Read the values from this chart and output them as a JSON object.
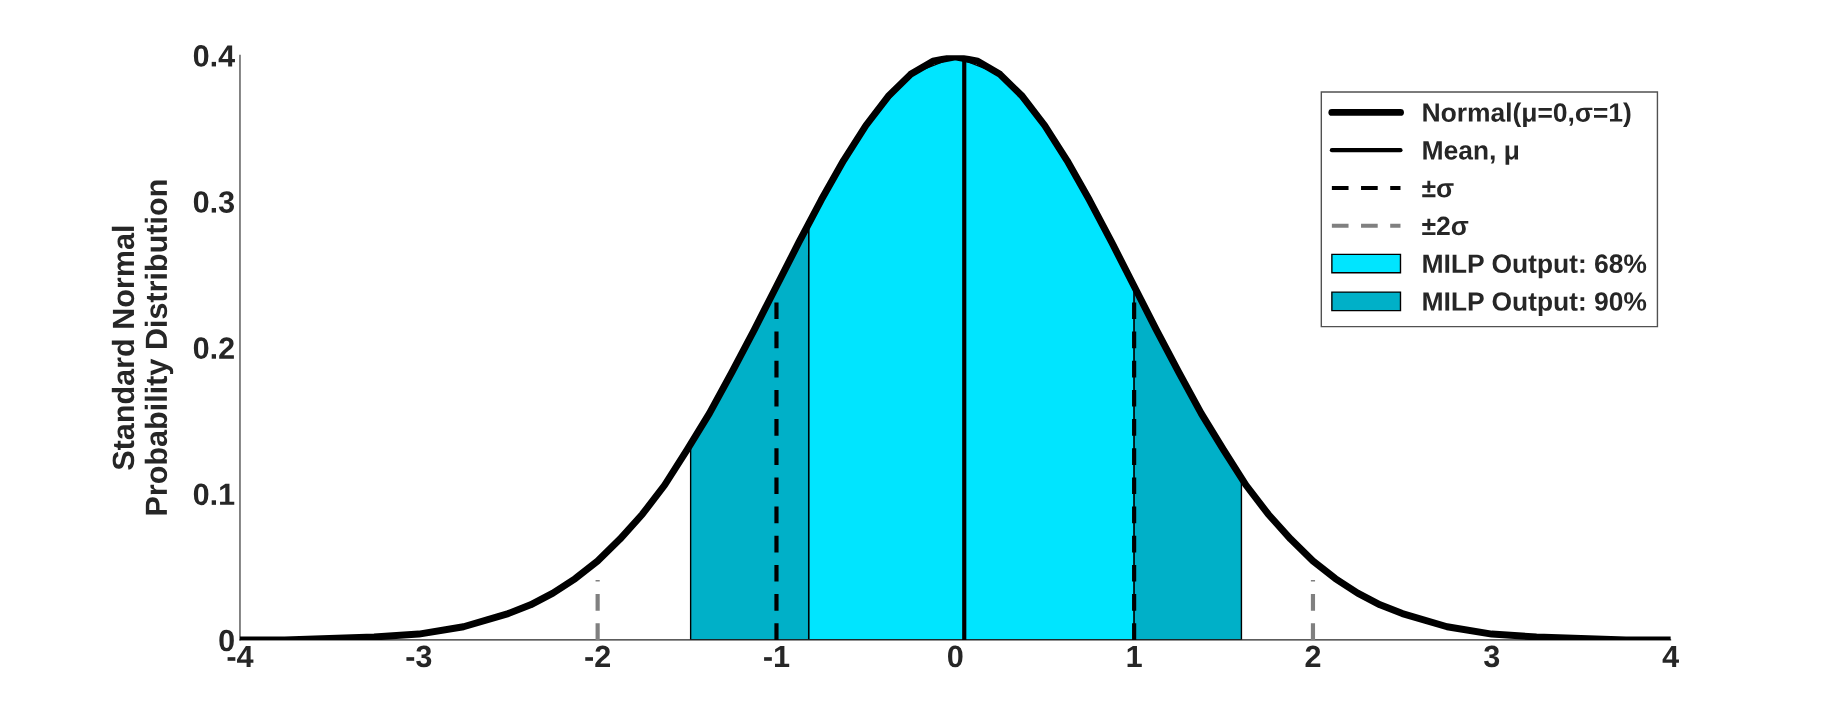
{
  "chart_data": {
    "type": "line",
    "ylabel": "Standard Normal\nProbability Distribution",
    "xlim": [
      -4,
      4
    ],
    "xticks": [
      -4,
      -3,
      -2,
      -1,
      0,
      1,
      2,
      3,
      4
    ],
    "ylim": [
      0,
      0.4
    ],
    "yticks": [
      0,
      0.1,
      0.2,
      0.3,
      0.4
    ],
    "grid": false,
    "legend": "top right",
    "series": [
      {
        "name": "Normal(μ=0,σ=1)",
        "color": "#000000",
        "line_style": "solid",
        "x": [
          -4,
          -3.75,
          -3.5,
          -3.25,
          -3,
          -2.75,
          -2.5,
          -2.375,
          -2.25,
          -2.125,
          -2,
          -1.875,
          -1.75,
          -1.625,
          -1.5,
          -1.375,
          -1.25,
          -1.125,
          -1,
          -0.875,
          -0.75,
          -0.625,
          -0.5,
          -0.375,
          -0.25,
          -0.125,
          0,
          0.125,
          0.25,
          0.375,
          0.5,
          0.625,
          0.75,
          0.875,
          1,
          1.125,
          1.25,
          1.375,
          1.5,
          1.625,
          1.75,
          1.875,
          2,
          2.125,
          2.25,
          2.375,
          2.5,
          2.75,
          3,
          3.25,
          3.5,
          3.75,
          4
        ],
        "values": [
          0.0,
          0.0,
          0.001,
          0.002,
          0.004,
          0.009,
          0.018,
          0.024,
          0.032,
          0.042,
          0.054,
          0.069,
          0.086,
          0.106,
          0.13,
          0.155,
          0.183,
          0.212,
          0.242,
          0.272,
          0.301,
          0.328,
          0.352,
          0.372,
          0.387,
          0.396,
          0.399,
          0.396,
          0.387,
          0.372,
          0.352,
          0.328,
          0.301,
          0.272,
          0.242,
          0.212,
          0.183,
          0.155,
          0.13,
          0.106,
          0.086,
          0.069,
          0.054,
          0.042,
          0.032,
          0.024,
          0.018,
          0.009,
          0.004,
          0.002,
          0.001,
          0.0,
          0.0
        ]
      },
      {
        "name": "Mean, μ",
        "color": "#000000",
        "line_style": "solid",
        "x": [
          0.05,
          0.05
        ],
        "values": [
          0,
          0.398
        ]
      },
      {
        "name": "±σ",
        "color": "#000000",
        "line_style": "dashed",
        "x": [
          -1,
          -1,
          null,
          1,
          1
        ],
        "values": [
          0,
          0.233,
          null,
          0,
          0.233
        ]
      },
      {
        "name": "±2σ",
        "color": "#808080",
        "line_style": "dashed",
        "x": [
          -2,
          -2,
          null,
          2,
          2
        ],
        "values": [
          0,
          0.041,
          null,
          0,
          0.041
        ]
      },
      {
        "name": "MILP Output: 68%",
        "type": "area",
        "color": "#00e5ff",
        "x": [
          -0.82,
          -0.5,
          -0.25,
          0,
          0.25,
          0.5,
          0.75,
          1.0
        ],
        "values": [
          0.286,
          0.352,
          0.387,
          0.399,
          0.387,
          0.352,
          0.301,
          0.242
        ]
      },
      {
        "name": "MILP Output: 90%",
        "type": "area",
        "color": "#00b0c8",
        "x": [
          -1.48,
          -1.25,
          -1,
          -0.82,
          null,
          1.0,
          1.25,
          1.5,
          1.6
        ],
        "values": [
          0.133,
          0.183,
          0.242,
          0.286,
          null,
          0.242,
          0.183,
          0.13,
          0.111
        ]
      }
    ]
  }
}
